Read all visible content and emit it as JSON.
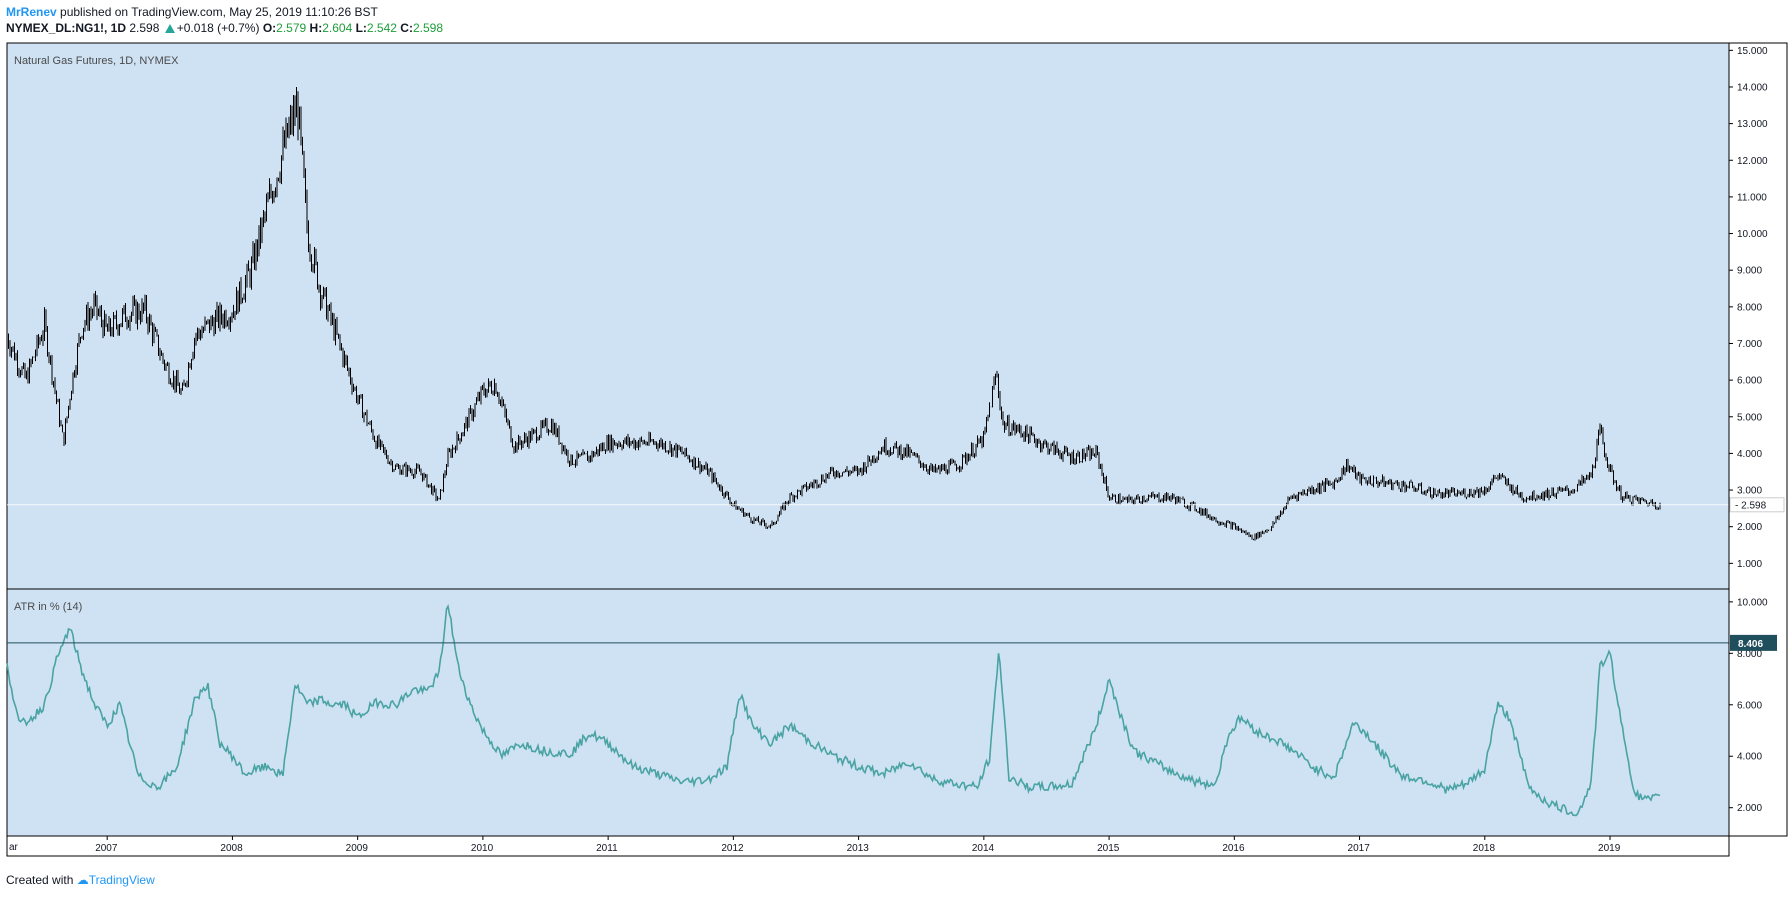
{
  "header": {
    "author": "MrRenev",
    "published_text": "published on TradingView.com, May 25, 2019 11:10:26 BST",
    "symbol": "NYMEX_DL:NG1!, 1D",
    "last": "2.598",
    "change": "+0.018 (+0.7%)",
    "open_label": "O:",
    "open_value": "2.579",
    "high_label": "H:",
    "high_value": "2.604",
    "low_label": "L:",
    "low_value": "2.542",
    "close_label": "C:",
    "close_value": "2.598"
  },
  "footer": {
    "created_with": "Created with",
    "brand": "TradingView"
  },
  "colors": {
    "background": "#cfe2f3",
    "price_bars": "#000000",
    "atr_line": "#4aa3a3",
    "hline": "#1f4e5c",
    "label_dark": "#1f4e5c",
    "grid_border": "#000000"
  },
  "chart_data": [
    {
      "type": "line",
      "panel": "price",
      "title": "Natural Gas Futures, 1D, NYMEX",
      "style": "ohlc-bars",
      "ylim": [
        0.3,
        15.2
      ],
      "y_ticks": [
        "1.000",
        "2.000",
        "3.000",
        "4.000",
        "5.000",
        "6.000",
        "7.000",
        "8.000",
        "9.000",
        "10.000",
        "11.000",
        "12.000",
        "13.000",
        "14.000",
        "15.000"
      ],
      "last_value_label": "2.598",
      "last_value": 2.598,
      "x": [
        2006.2,
        2006.35,
        2006.5,
        2006.65,
        2006.72,
        2006.8,
        2006.9,
        2007.0,
        2007.15,
        2007.3,
        2007.45,
        2007.6,
        2007.7,
        2007.85,
        2008.0,
        2008.15,
        2008.3,
        2008.45,
        2008.52,
        2008.6,
        2008.7,
        2008.8,
        2008.9,
        2009.0,
        2009.15,
        2009.3,
        2009.5,
        2009.65,
        2009.72,
        2009.85,
        2010.0,
        2010.1,
        2010.25,
        2010.4,
        2010.55,
        2010.7,
        2010.85,
        2011.0,
        2011.2,
        2011.4,
        2011.6,
        2011.8,
        2012.0,
        2012.15,
        2012.3,
        2012.45,
        2012.6,
        2012.8,
        2013.0,
        2013.2,
        2013.4,
        2013.6,
        2013.8,
        2014.0,
        2014.1,
        2014.15,
        2014.3,
        2014.5,
        2014.7,
        2014.9,
        2015.0,
        2015.15,
        2015.3,
        2015.5,
        2015.7,
        2015.85,
        2016.0,
        2016.15,
        2016.3,
        2016.45,
        2016.6,
        2016.8,
        2016.9,
        2017.0,
        2017.2,
        2017.4,
        2017.6,
        2017.8,
        2018.0,
        2018.1,
        2018.3,
        2018.5,
        2018.7,
        2018.85,
        2018.92,
        2019.0,
        2019.1,
        2019.25,
        2019.4
      ],
      "values": [
        7.2,
        6.0,
        7.5,
        4.3,
        6.0,
        7.5,
        8.0,
        7.3,
        7.8,
        7.9,
        6.5,
        5.6,
        7.2,
        7.6,
        7.9,
        9.0,
        11.0,
        12.8,
        13.5,
        10.0,
        8.5,
        7.5,
        6.5,
        5.5,
        4.3,
        3.6,
        3.5,
        2.7,
        3.9,
        4.7,
        5.7,
        5.9,
        4.2,
        4.5,
        4.8,
        3.8,
        3.9,
        4.3,
        4.3,
        4.3,
        4.0,
        3.5,
        2.6,
        2.2,
        2.0,
        2.8,
        3.1,
        3.5,
        3.5,
        4.2,
        4.0,
        3.5,
        3.7,
        4.4,
        6.2,
        4.8,
        4.6,
        4.2,
        3.9,
        4.0,
        2.8,
        2.7,
        2.8,
        2.8,
        2.5,
        2.2,
        2.0,
        1.7,
        2.0,
        2.8,
        3.0,
        3.2,
        3.7,
        3.3,
        3.2,
        3.1,
        2.9,
        2.9,
        3.0,
        3.4,
        2.8,
        2.9,
        3.0,
        3.4,
        4.6,
        3.5,
        2.8,
        2.7,
        2.6
      ]
    },
    {
      "type": "line",
      "panel": "indicator",
      "title": "ATR in % (14)",
      "ylim": [
        0.9,
        10.5
      ],
      "y_ticks": [
        "2.000",
        "4.000",
        "6.000",
        "8.000",
        "10.000"
      ],
      "hline_value": 8.406,
      "hline_label": "8.406",
      "x": [
        2006.2,
        2006.3,
        2006.4,
        2006.5,
        2006.6,
        2006.7,
        2006.8,
        2006.9,
        2007.0,
        2007.1,
        2007.25,
        2007.4,
        2007.55,
        2007.7,
        2007.8,
        2007.9,
        2008.0,
        2008.1,
        2008.2,
        2008.3,
        2008.4,
        2008.5,
        2008.6,
        2008.7,
        2008.8,
        2008.9,
        2009.0,
        2009.15,
        2009.3,
        2009.45,
        2009.55,
        2009.65,
        2009.72,
        2009.8,
        2009.9,
        2010.0,
        2010.15,
        2010.3,
        2010.5,
        2010.7,
        2010.85,
        2011.0,
        2011.2,
        2011.4,
        2011.6,
        2011.8,
        2011.95,
        2012.05,
        2012.15,
        2012.3,
        2012.45,
        2012.6,
        2012.8,
        2013.0,
        2013.2,
        2013.4,
        2013.6,
        2013.8,
        2013.95,
        2014.05,
        2014.12,
        2014.2,
        2014.35,
        2014.5,
        2014.7,
        2014.9,
        2015.0,
        2015.1,
        2015.2,
        2015.35,
        2015.5,
        2015.7,
        2015.85,
        2015.95,
        2016.05,
        2016.2,
        2016.35,
        2016.5,
        2016.65,
        2016.8,
        2016.95,
        2017.05,
        2017.2,
        2017.35,
        2017.5,
        2017.7,
        2017.85,
        2018.0,
        2018.1,
        2018.2,
        2018.35,
        2018.5,
        2018.65,
        2018.75,
        2018.85,
        2018.92,
        2019.0,
        2019.1,
        2019.2,
        2019.3,
        2019.4
      ],
      "values": [
        7.5,
        5.2,
        5.5,
        6.0,
        7.8,
        9.0,
        7.3,
        6.0,
        5.2,
        6.0,
        3.2,
        2.8,
        3.5,
        6.2,
        6.8,
        4.5,
        4.0,
        3.3,
        3.5,
        3.6,
        3.2,
        6.8,
        6.0,
        6.2,
        6.0,
        6.0,
        5.5,
        6.1,
        6.0,
        6.6,
        6.5,
        7.2,
        10.0,
        7.5,
        6.0,
        5.0,
        4.0,
        4.5,
        4.2,
        4.1,
        4.9,
        4.5,
        3.6,
        3.3,
        3.0,
        3.1,
        3.6,
        6.5,
        5.2,
        4.5,
        5.2,
        4.6,
        4.0,
        3.6,
        3.3,
        3.8,
        3.1,
        2.9,
        2.8,
        4.0,
        8.2,
        3.2,
        2.8,
        2.8,
        2.9,
        5.2,
        7.0,
        5.5,
        4.2,
        3.8,
        3.4,
        3.0,
        2.9,
        4.8,
        5.5,
        4.9,
        4.6,
        4.1,
        3.5,
        3.2,
        5.3,
        4.9,
        4.0,
        3.2,
        3.1,
        2.7,
        2.9,
        3.5,
        6.0,
        5.5,
        2.8,
        2.2,
        1.9,
        1.8,
        3.0,
        7.5,
        8.0,
        5.0,
        2.5,
        2.3,
        2.4
      ]
    }
  ],
  "x_axis": {
    "start_label": "Mar",
    "labels": [
      "2007",
      "2008",
      "2009",
      "2010",
      "2011",
      "2012",
      "2013",
      "2014",
      "2015",
      "2016",
      "2017",
      "2018",
      "2019"
    ]
  }
}
